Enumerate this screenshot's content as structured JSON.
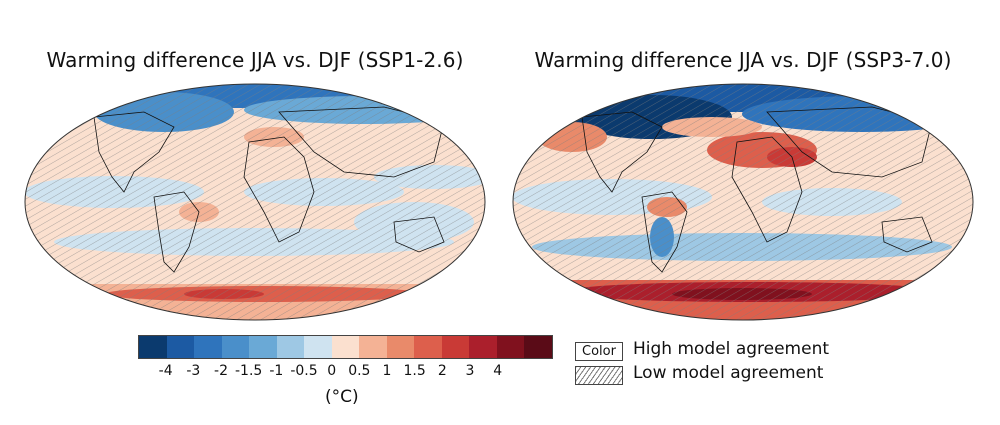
{
  "maps": [
    {
      "title": "Warming difference JJA vs. DJF (SSP1-2.6)"
    },
    {
      "title": "Warming difference JJA vs. DJF (SSP3-7.0)"
    }
  ],
  "colorbar": {
    "colors": [
      "#0b3a6e",
      "#1c5aa3",
      "#2f74bc",
      "#4a8fca",
      "#6aa9d6",
      "#9ec8e4",
      "#cfe3f0",
      "#fbe0cf",
      "#f4b295",
      "#e98a6a",
      "#dd5f4c",
      "#c93a36",
      "#ab1f2c",
      "#80111e",
      "#5a0b17"
    ],
    "ticks": [
      "-4",
      "-3",
      "-2",
      "-1.5",
      "-1",
      "-0.5",
      "0",
      "0.5",
      "1",
      "1.5",
      "2",
      "3",
      "4"
    ],
    "unit": "(°C)"
  },
  "legend": {
    "high": {
      "swatch_text": "Color",
      "label": "High model agreement"
    },
    "low": {
      "label": "Low model agreement"
    }
  }
}
